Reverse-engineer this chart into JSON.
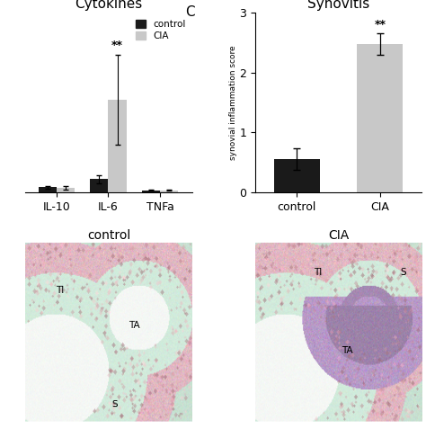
{
  "cytokines_title": "Cytokines",
  "synovitis_title": "Synovitis",
  "panel_c_label": "C",
  "cytokines_categories": [
    "IL-10",
    "IL-6",
    "TNFa"
  ],
  "cytokines_control_values": [
    0.08,
    0.22,
    0.03
  ],
  "cytokines_cia_values": [
    0.07,
    1.55,
    0.03
  ],
  "cytokines_control_errors": [
    0.025,
    0.07,
    0.01
  ],
  "cytokines_cia_errors": [
    0.025,
    0.75,
    0.01
  ],
  "synovitis_categories": [
    "control",
    "CIA"
  ],
  "synovitis_control_value": 0.55,
  "synovitis_cia_value": 2.48,
  "synovitis_control_error": 0.18,
  "synovitis_cia_error": 0.18,
  "control_color": "#1a1a1a",
  "cia_color": "#c8c8c8",
  "cytokines_ylim": [
    0,
    3.0
  ],
  "synovitis_ylim": [
    0,
    3.0
  ],
  "synovitis_yticks": [
    0,
    1,
    2,
    3
  ],
  "ylabel_synovitis": "synovial inflammation score",
  "legend_labels": [
    "control",
    "CIA"
  ],
  "sig_label": "**",
  "background_color": "#ffffff",
  "bar_width": 0.35,
  "font_size": 9,
  "title_font_size": 11,
  "control_image_title": "control",
  "cia_image_title": "CIA",
  "hist_bg_color": [
    0.78,
    0.88,
    0.82
  ],
  "hist_tissue_pink": [
    0.88,
    0.72,
    0.76
  ],
  "hist_tissue_purple": [
    0.72,
    0.6,
    0.78
  ],
  "hist_cartilage_color": [
    0.82,
    0.92,
    0.86
  ],
  "hist_white_space": [
    0.96,
    0.97,
    0.96
  ]
}
